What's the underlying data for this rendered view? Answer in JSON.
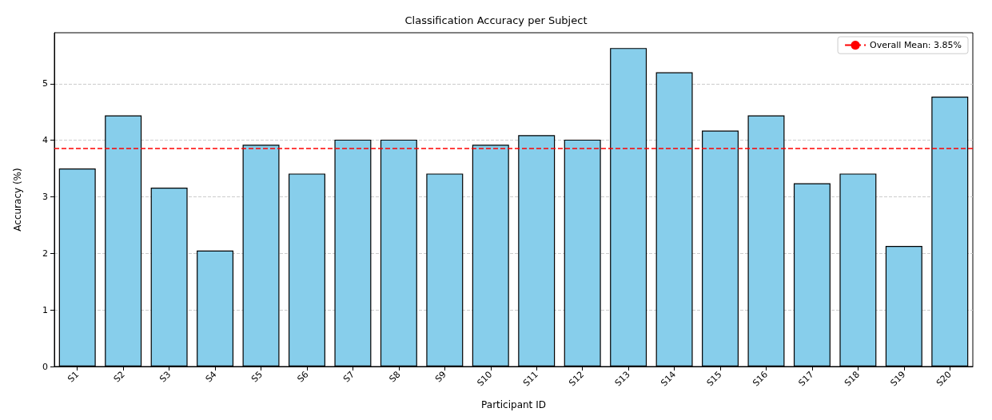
{
  "chart_data": {
    "type": "bar",
    "title": "Classification Accuracy per Subject",
    "xlabel": "Participant ID",
    "ylabel": "Accuracy (%)",
    "categories": [
      "S1",
      "S2",
      "S3",
      "S4",
      "S5",
      "S6",
      "S7",
      "S8",
      "S9",
      "S10",
      "S11",
      "S12",
      "S13",
      "S14",
      "S15",
      "S16",
      "S17",
      "S18",
      "S19",
      "S20"
    ],
    "values": [
      3.5,
      4.44,
      3.16,
      2.05,
      3.92,
      3.41,
      4.01,
      4.01,
      3.41,
      3.92,
      4.09,
      4.01,
      5.63,
      5.2,
      4.17,
      4.44,
      3.24,
      3.41,
      2.13,
      4.77
    ],
    "color": "#87ceeb",
    "ylim": [
      0,
      5.9
    ],
    "yticks": [
      0,
      1,
      2,
      3,
      4,
      5
    ],
    "grid": "y",
    "legend": "top right",
    "ref_lines": [
      {
        "axis": "y",
        "value": 3.85,
        "label": "Overall Mean: 3.85%",
        "color": "#ff0000",
        "line_style": "dashed"
      }
    ]
  }
}
